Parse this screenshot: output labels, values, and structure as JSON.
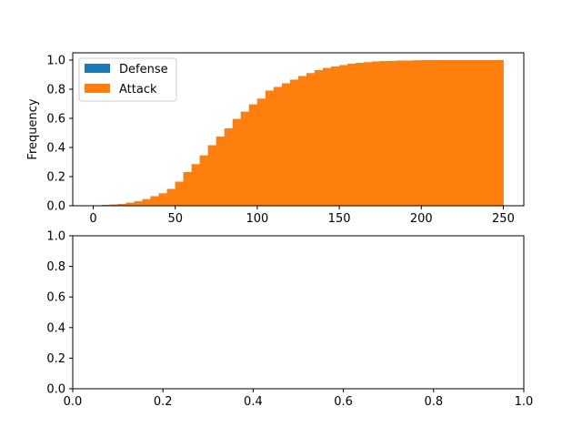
{
  "chart_data": [
    {
      "type": "bar",
      "subtype": "cumulative-histogram",
      "title": "",
      "xlabel": "",
      "ylabel": "Frequency",
      "xlim": [
        -12.5,
        262.5
      ],
      "ylim": [
        0,
        1.05
      ],
      "xticks": [
        0,
        50,
        100,
        150,
        200,
        250
      ],
      "yticks": [
        0.0,
        0.2,
        0.4,
        0.6,
        0.8,
        1.0
      ],
      "xtick_labels": [
        "0",
        "50",
        "100",
        "150",
        "200",
        "250"
      ],
      "ytick_labels": [
        "0.0",
        "0.2",
        "0.4",
        "0.6",
        "0.8",
        "1.0"
      ],
      "grid": false,
      "legend_position": "top-left",
      "bin_width": 5,
      "series": [
        {
          "name": "Defense",
          "color": "#1f77b4",
          "bin_starts": [
            5,
            10,
            15,
            20,
            25,
            30,
            35,
            40,
            45,
            50,
            55,
            60,
            65,
            70,
            75,
            80,
            85,
            90,
            95,
            100,
            105,
            110,
            115,
            120,
            125,
            130,
            135,
            140,
            145,
            150,
            155,
            160,
            165,
            170,
            175,
            180,
            185,
            190,
            195,
            200,
            205,
            210,
            215,
            220,
            225,
            230,
            235,
            240,
            245
          ],
          "values": [
            0.005,
            0.008,
            0.012,
            0.02,
            0.03,
            0.045,
            0.065,
            0.085,
            0.115,
            0.165,
            0.23,
            0.285,
            0.345,
            0.415,
            0.475,
            0.53,
            0.595,
            0.645,
            0.695,
            0.735,
            0.79,
            0.815,
            0.84,
            0.865,
            0.89,
            0.91,
            0.93,
            0.945,
            0.955,
            0.965,
            0.975,
            0.98,
            0.985,
            0.99,
            0.992,
            0.994,
            0.996,
            0.997,
            0.998,
            0.999,
            0.999,
            1.0,
            1.0,
            1.0,
            1.0,
            1.0,
            1.0,
            1.0,
            1.0
          ]
        },
        {
          "name": "Attack",
          "color": "#ff7f0e",
          "bin_starts": [
            5,
            10,
            15,
            20,
            25,
            30,
            35,
            40,
            45,
            50,
            55,
            60,
            65,
            70,
            75,
            80,
            85,
            90,
            95,
            100,
            105,
            110,
            115,
            120,
            125,
            130,
            135,
            140,
            145,
            150,
            155,
            160,
            165,
            170,
            175,
            180,
            185,
            190,
            195,
            200,
            205,
            210,
            215,
            220,
            225,
            230,
            235,
            240,
            245
          ],
          "values": [
            0.005,
            0.008,
            0.012,
            0.02,
            0.03,
            0.045,
            0.065,
            0.085,
            0.115,
            0.165,
            0.23,
            0.285,
            0.345,
            0.415,
            0.475,
            0.53,
            0.595,
            0.645,
            0.695,
            0.735,
            0.79,
            0.815,
            0.84,
            0.865,
            0.89,
            0.91,
            0.93,
            0.945,
            0.955,
            0.965,
            0.975,
            0.98,
            0.985,
            0.99,
            0.992,
            0.994,
            0.996,
            0.997,
            0.998,
            0.999,
            0.999,
            1.0,
            1.0,
            1.0,
            1.0,
            1.0,
            1.0,
            1.0,
            1.0
          ]
        }
      ]
    },
    {
      "type": "scatter",
      "title": "",
      "xlabel": "",
      "ylabel": "",
      "xlim": [
        0,
        1
      ],
      "ylim": [
        0,
        1
      ],
      "xticks": [
        0.0,
        0.2,
        0.4,
        0.6,
        0.8,
        1.0
      ],
      "yticks": [
        0.0,
        0.2,
        0.4,
        0.6,
        0.8,
        1.0
      ],
      "xtick_labels": [
        "0.0",
        "0.2",
        "0.4",
        "0.6",
        "0.8",
        "1.0"
      ],
      "ytick_labels": [
        "0.0",
        "0.2",
        "0.4",
        "0.6",
        "0.8",
        "1.0"
      ],
      "grid": false,
      "series": []
    }
  ]
}
